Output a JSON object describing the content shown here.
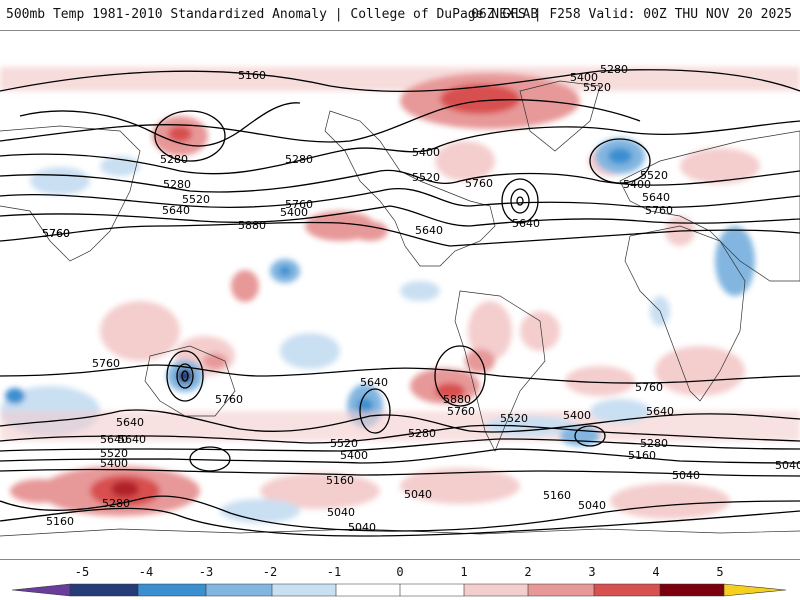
{
  "header": {
    "left": "500mb Temp 1981-2010 Standardized Anomaly | College of DuPage NEXLAB",
    "right": "06Z GFS | F258 Valid: 00Z THU NOV 20 2025"
  },
  "colors": {
    "neg5": "#6a3d9a",
    "neg4": "#253c78",
    "neg3": "#3a8fd0",
    "neg2": "#82b6e0",
    "neg1": "#c9dff2",
    "zero": "#ffffff",
    "pos1": "#f4cdcd",
    "pos2": "#e79898",
    "pos3": "#d85050",
    "pos4": "#b0202a",
    "pos5": "#7a0010",
    "over": "#f5d020",
    "contour": "#000000"
  },
  "colorbar": {
    "labels": [
      "-5",
      "-4",
      "-3",
      "-2",
      "-1",
      "0",
      "1",
      "2",
      "3",
      "4",
      "5"
    ]
  },
  "contour_labels": [
    "5160",
    "5280",
    "5400",
    "5520",
    "5280",
    "5400",
    "5520",
    "5640",
    "5760",
    "5280",
    "5280",
    "5400",
    "5520",
    "5640",
    "5760",
    "5880",
    "5760",
    "5400",
    "5520",
    "5760",
    "5640",
    "5640",
    "5760",
    "5640",
    "5640",
    "5760",
    "5760",
    "5880",
    "5760",
    "5640",
    "5520",
    "5400",
    "5280",
    "5160",
    "5640",
    "5520",
    "5400",
    "5280",
    "5160",
    "5040",
    "5040",
    "5040",
    "5160",
    "5040",
    "5280",
    "5400",
    "5520",
    "5640",
    "5760",
    "5160",
    "5040",
    "5040",
    "5760",
    "5640",
    "5520",
    "5400",
    "5280",
    "5160"
  ],
  "map_description": "Global equirectangular map"
}
